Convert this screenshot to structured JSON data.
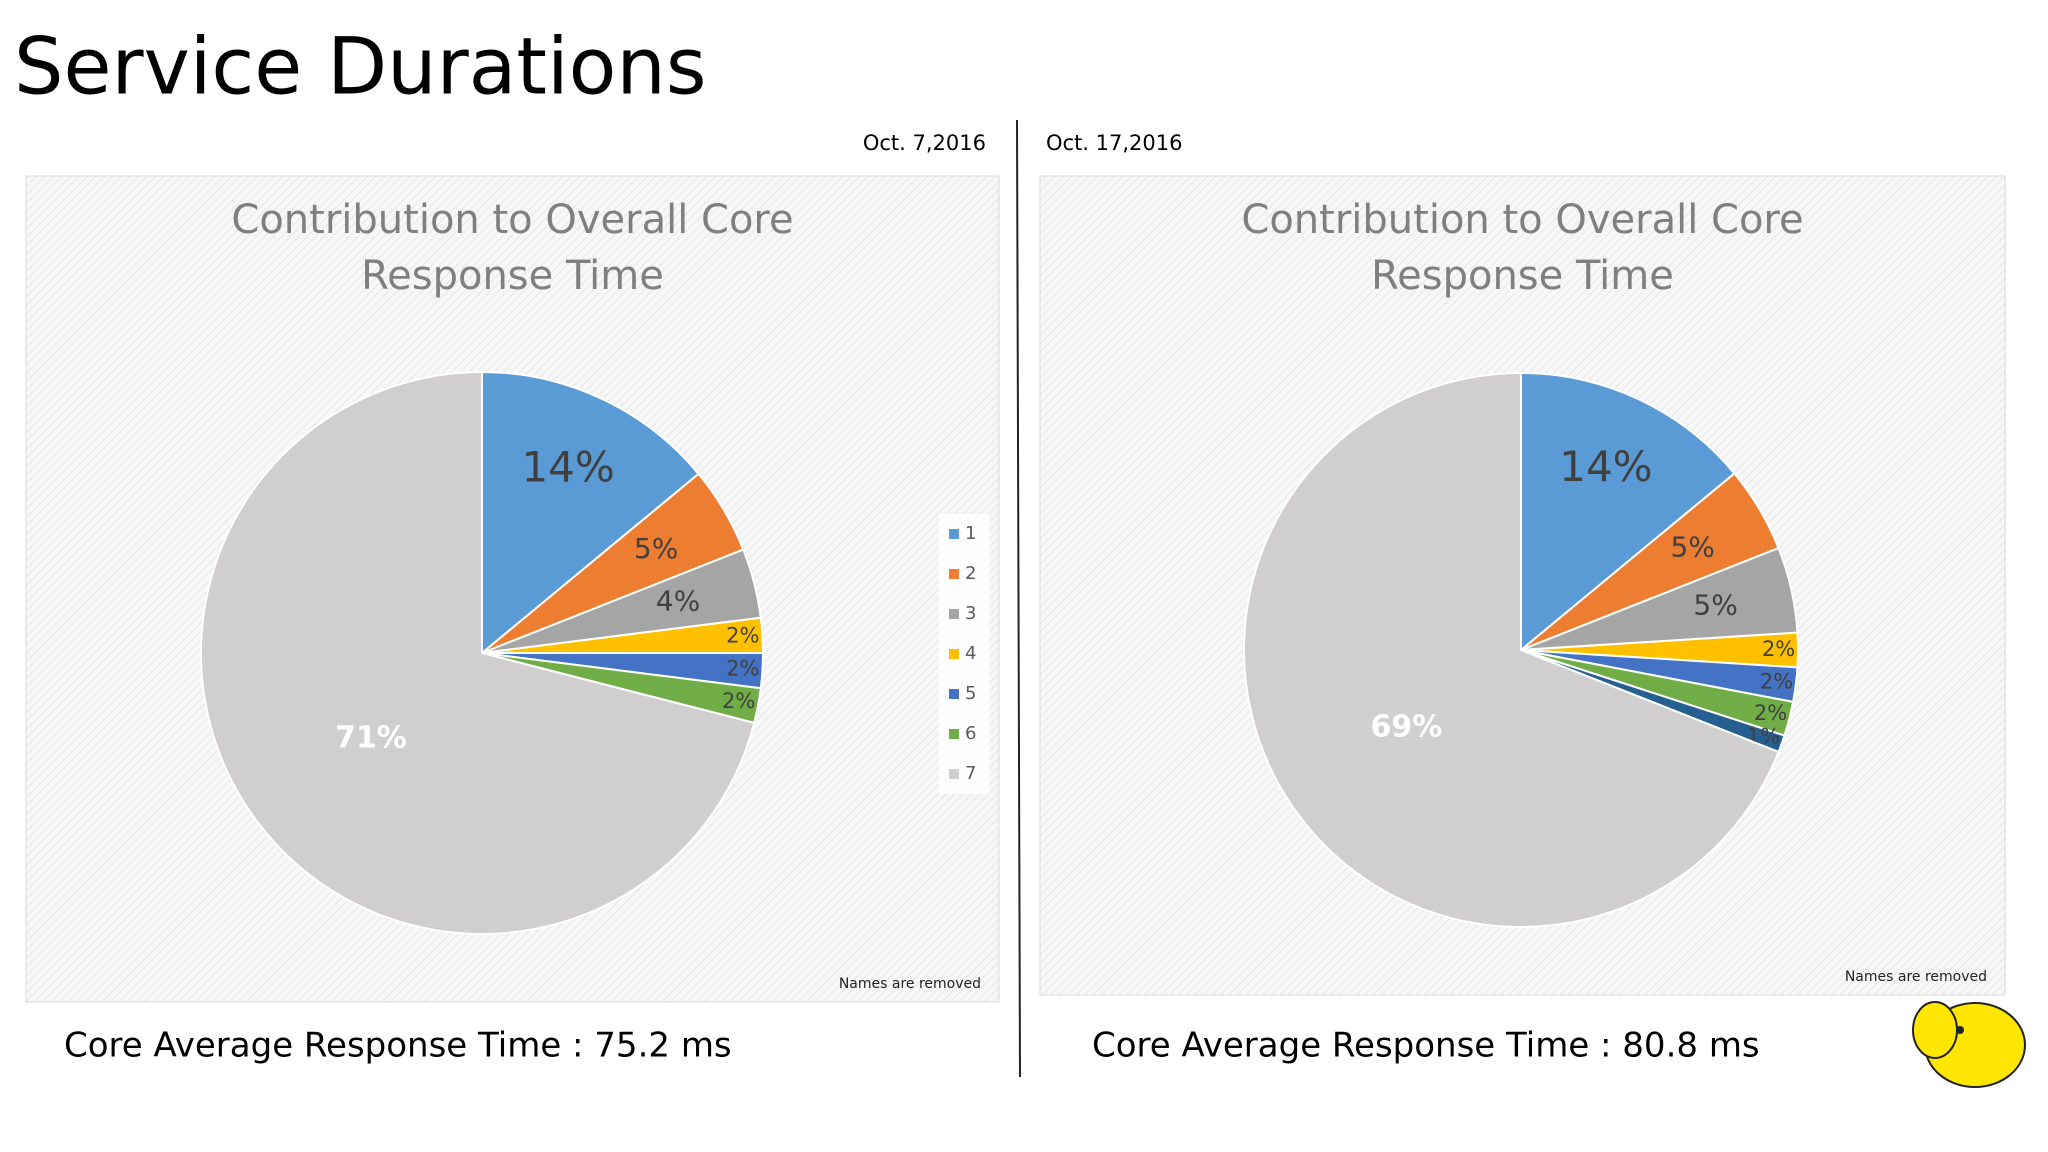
{
  "title": "Service Durations",
  "dates": [
    "Oct. 7,2016",
    "Oct. 17,2016"
  ],
  "captions": [
    "Core Average Response Time : 75.2 ms",
    "Core Average Response Time : 80.8 ms"
  ],
  "chart_data": [
    {
      "type": "pie",
      "title": "Contribution to Overall Core Response Time",
      "categories": [
        "1",
        "2",
        "3",
        "4",
        "5",
        "6",
        "7"
      ],
      "values": [
        14,
        5,
        4,
        2,
        2,
        2,
        71
      ],
      "value_labels": [
        "14%",
        "5%",
        "4%",
        "2%",
        "2%",
        "2%",
        "71%"
      ],
      "colors": [
        "#5b9bd5",
        "#ed7d31",
        "#a5a5a5",
        "#ffc000",
        "#4472c4",
        "#70ad47",
        "#d0cece"
      ],
      "legend": "right",
      "note": "Names are removed"
    },
    {
      "type": "pie",
      "title": "Contribution to Overall Core Response Time",
      "values": [
        14,
        5,
        5,
        2,
        2,
        2,
        1,
        69
      ],
      "value_labels": [
        "14%",
        "5%",
        "5%",
        "2%",
        "2%",
        "2%",
        "1%",
        "69%"
      ],
      "colors": [
        "#5b9bd5",
        "#ed7d31",
        "#a5a5a5",
        "#ffc000",
        "#4472c4",
        "#70ad47",
        "#255e91",
        "#d0cece"
      ],
      "note": "Names are removed"
    }
  ]
}
